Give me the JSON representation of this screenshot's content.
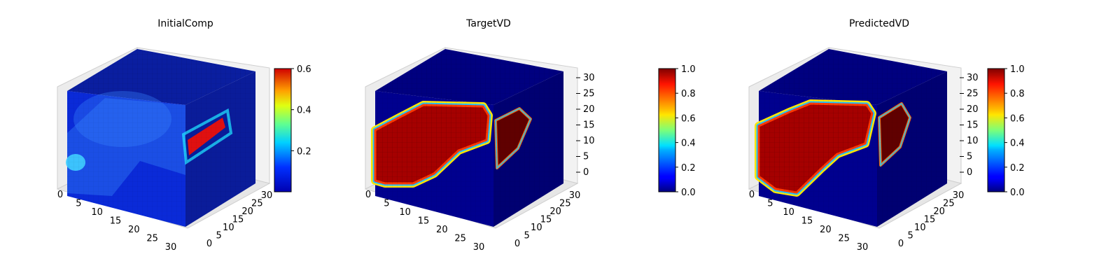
{
  "chart_data": [
    {
      "type": "voxel3d",
      "title": "InitialComp",
      "field": "concentration",
      "x_ticks": [
        "0",
        "5",
        "10",
        "15",
        "20",
        "25",
        "30"
      ],
      "y_ticks": [
        "0",
        "5",
        "10",
        "15",
        "20",
        "25",
        "30"
      ],
      "z_ticks": [],
      "grid_size": 32,
      "colormap": "jet",
      "colorbar": {
        "vmin": 0.0,
        "vmax": 0.6,
        "ticks": [
          "0.2",
          "0.4",
          "0.6"
        ]
      }
    },
    {
      "type": "voxel3d",
      "title": "TargetVD",
      "field": "binary_channel",
      "x_ticks": [
        "0",
        "5",
        "10",
        "15",
        "20",
        "25",
        "30"
      ],
      "y_ticks": [
        "0",
        "5",
        "10",
        "15",
        "20",
        "25",
        "30"
      ],
      "z_ticks": [
        "0",
        "5",
        "10",
        "15",
        "20",
        "25",
        "30"
      ],
      "grid_size": 32,
      "colormap": "jet",
      "colorbar": {
        "vmin": 0.0,
        "vmax": 1.0,
        "ticks": [
          "0.0",
          "0.2",
          "0.4",
          "0.6",
          "0.8",
          "1.0"
        ]
      }
    },
    {
      "type": "voxel3d",
      "title": "PredictedVD",
      "field": "binary_channel",
      "x_ticks": [
        "0",
        "5",
        "10",
        "15",
        "20",
        "25",
        "30"
      ],
      "y_ticks": [
        "0",
        "5",
        "10",
        "15",
        "20",
        "25",
        "30"
      ],
      "z_ticks": [
        "0",
        "5",
        "10",
        "15",
        "20",
        "25",
        "30"
      ],
      "grid_size": 32,
      "colormap": "jet",
      "colorbar": {
        "vmin": 0.0,
        "vmax": 1.0,
        "ticks": [
          "0.0",
          "0.2",
          "0.4",
          "0.6",
          "0.8",
          "1.0"
        ]
      }
    }
  ]
}
